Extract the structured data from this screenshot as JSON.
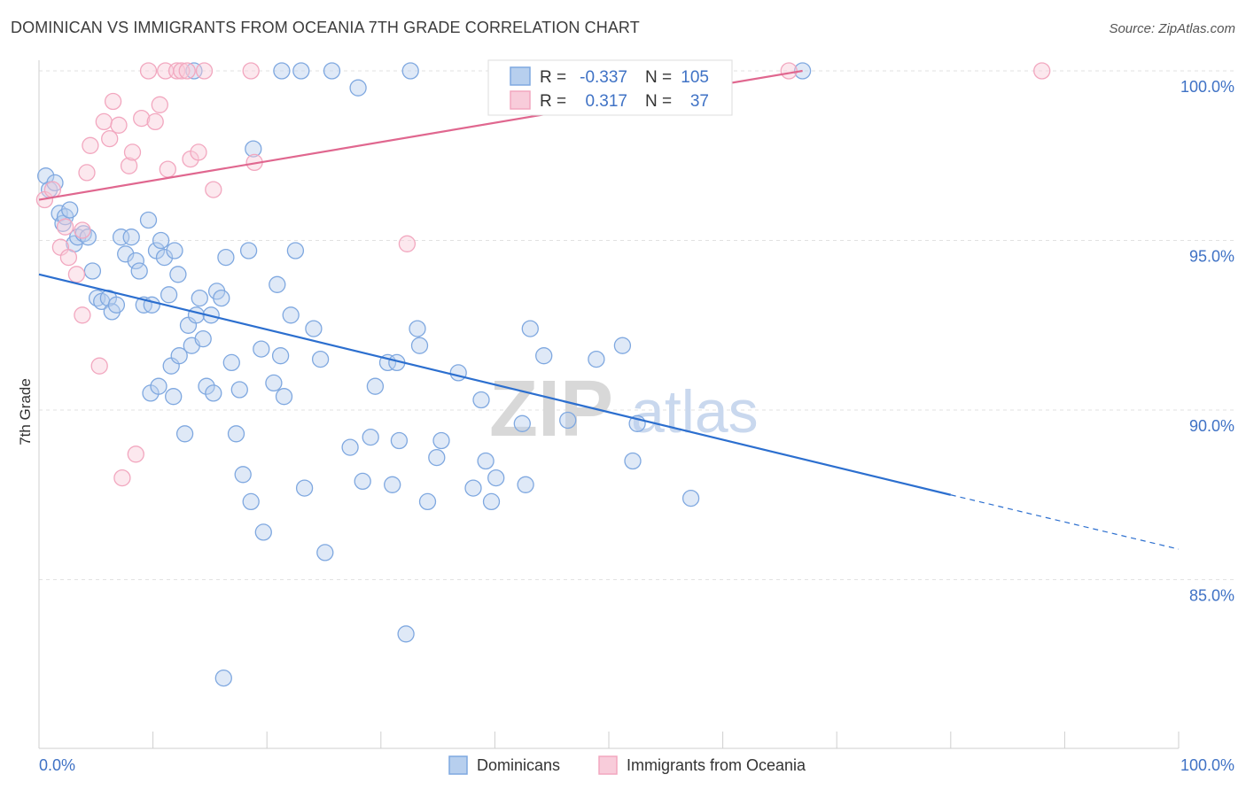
{
  "title": "DOMINICAN VS IMMIGRANTS FROM OCEANIA 7TH GRADE CORRELATION CHART",
  "source": "Source: ZipAtlas.com",
  "watermark": {
    "zip": "ZIP",
    "atlas": "atlas"
  },
  "colors": {
    "blue": "#7fa8e0",
    "blue_line": "#2c6fcf",
    "pink": "#f2a7bf",
    "pink_line": "#e0678f",
    "grid": "#e2e2e2",
    "tick_text": "#3f72c5"
  },
  "legend": {
    "rows": [
      {
        "r_label": "R =",
        "r_value": "-0.337",
        "n_label": "N =",
        "n_value": "105",
        "series": "Dominicans"
      },
      {
        "r_label": "R =",
        "r_value": "0.317",
        "n_label": "N =",
        "n_value": "37",
        "series": "Immigrants from Oceania"
      }
    ]
  },
  "chart_data": {
    "type": "scatter",
    "title": "DOMINICAN VS IMMIGRANTS FROM OCEANIA 7TH GRADE CORRELATION CHART",
    "xlabel": "",
    "ylabel": "7th Grade",
    "xlim": [
      0,
      100
    ],
    "ylim": [
      80.5,
      100.5
    ],
    "x_tick_labels": [
      "0.0%",
      "100.0%"
    ],
    "y_ticks": [
      85,
      90,
      95,
      100
    ],
    "y_tick_labels": [
      "85.0%",
      "90.0%",
      "95.0%",
      "100.0%"
    ],
    "grid": true,
    "series": [
      {
        "name": "Dominicans",
        "color": "#7fa8e0",
        "r": -0.337,
        "n": 105,
        "trend": {
          "x0": 0,
          "y0": 94.0,
          "x1": 80,
          "y1": 87.5,
          "dash_to_x": 100,
          "dash_to_y": 85.9
        },
        "points": [
          [
            0.6,
            96.9
          ],
          [
            0.9,
            96.5
          ],
          [
            1.4,
            96.7
          ],
          [
            1.8,
            95.8
          ],
          [
            2.1,
            95.5
          ],
          [
            2.3,
            95.7
          ],
          [
            2.7,
            95.9
          ],
          [
            3.1,
            94.9
          ],
          [
            3.4,
            95.1
          ],
          [
            3.9,
            95.2
          ],
          [
            4.3,
            95.1
          ],
          [
            4.7,
            94.1
          ],
          [
            5.1,
            93.3
          ],
          [
            5.5,
            93.2
          ],
          [
            6.1,
            93.3
          ],
          [
            6.4,
            92.9
          ],
          [
            6.8,
            93.1
          ],
          [
            7.2,
            95.1
          ],
          [
            7.6,
            94.6
          ],
          [
            8.1,
            95.1
          ],
          [
            8.5,
            94.4
          ],
          [
            8.8,
            94.1
          ],
          [
            9.2,
            93.1
          ],
          [
            9.6,
            95.6
          ],
          [
            9.9,
            93.1
          ],
          [
            10.3,
            94.7
          ],
          [
            10.7,
            95.0
          ],
          [
            11.0,
            94.5
          ],
          [
            11.4,
            93.4
          ],
          [
            11.9,
            94.7
          ],
          [
            12.2,
            94.0
          ],
          [
            9.8,
            90.5
          ],
          [
            10.5,
            90.7
          ],
          [
            11.6,
            91.3
          ],
          [
            11.8,
            90.4
          ],
          [
            12.3,
            91.6
          ],
          [
            12.8,
            89.3
          ],
          [
            13.1,
            92.5
          ],
          [
            13.4,
            91.9
          ],
          [
            13.8,
            92.8
          ],
          [
            14.1,
            93.3
          ],
          [
            14.4,
            92.1
          ],
          [
            14.7,
            90.7
          ],
          [
            15.1,
            92.8
          ],
          [
            15.3,
            90.5
          ],
          [
            15.6,
            93.5
          ],
          [
            16.0,
            93.3
          ],
          [
            16.4,
            94.5
          ],
          [
            16.9,
            91.4
          ],
          [
            17.3,
            89.3
          ],
          [
            17.6,
            90.6
          ],
          [
            17.9,
            88.1
          ],
          [
            18.4,
            94.7
          ],
          [
            18.8,
            97.7
          ],
          [
            18.6,
            87.3
          ],
          [
            19.5,
            91.8
          ],
          [
            19.7,
            86.4
          ],
          [
            20.6,
            90.8
          ],
          [
            20.9,
            93.7
          ],
          [
            21.2,
            91.6
          ],
          [
            21.5,
            90.4
          ],
          [
            22.1,
            92.8
          ],
          [
            22.5,
            94.7
          ],
          [
            23.3,
            87.7
          ],
          [
            24.1,
            92.4
          ],
          [
            24.7,
            91.5
          ],
          [
            25.1,
            85.8
          ],
          [
            25.7,
            100.0
          ],
          [
            27.3,
            88.9
          ],
          [
            28.0,
            99.5
          ],
          [
            28.4,
            87.9
          ],
          [
            29.1,
            89.2
          ],
          [
            29.5,
            90.7
          ],
          [
            30.6,
            91.4
          ],
          [
            31.0,
            87.8
          ],
          [
            31.4,
            91.4
          ],
          [
            31.6,
            89.1
          ],
          [
            32.2,
            83.4
          ],
          [
            32.6,
            100.0
          ],
          [
            33.2,
            92.4
          ],
          [
            33.4,
            91.9
          ],
          [
            34.1,
            87.3
          ],
          [
            34.9,
            88.6
          ],
          [
            35.3,
            89.1
          ],
          [
            36.8,
            91.1
          ],
          [
            38.1,
            87.7
          ],
          [
            38.8,
            90.3
          ],
          [
            39.2,
            88.5
          ],
          [
            39.7,
            87.3
          ],
          [
            40.1,
            88.0
          ],
          [
            42.4,
            89.6
          ],
          [
            42.7,
            87.8
          ],
          [
            43.1,
            92.4
          ],
          [
            44.3,
            91.6
          ],
          [
            46.4,
            89.7
          ],
          [
            48.9,
            91.5
          ],
          [
            51.2,
            91.9
          ],
          [
            52.1,
            88.5
          ],
          [
            52.5,
            89.6
          ],
          [
            57.2,
            87.4
          ],
          [
            23.0,
            100.0
          ],
          [
            21.3,
            100.0
          ],
          [
            16.2,
            82.1
          ],
          [
            67.0,
            100.0
          ],
          [
            13.6,
            100.0
          ]
        ]
      },
      {
        "name": "Immigrants from Oceania",
        "color": "#f2a7bf",
        "r": 0.317,
        "n": 37,
        "trend": {
          "x0": 0,
          "y0": 96.2,
          "x1": 67,
          "y1": 100.0
        },
        "points": [
          [
            0.5,
            96.2
          ],
          [
            1.2,
            96.5
          ],
          [
            1.9,
            94.8
          ],
          [
            2.3,
            95.4
          ],
          [
            2.6,
            94.5
          ],
          [
            3.3,
            94.0
          ],
          [
            3.8,
            95.3
          ],
          [
            3.8,
            92.8
          ],
          [
            4.2,
            97.0
          ],
          [
            4.5,
            97.8
          ],
          [
            5.3,
            91.3
          ],
          [
            5.7,
            98.5
          ],
          [
            6.2,
            98.0
          ],
          [
            6.5,
            99.1
          ],
          [
            7.0,
            98.4
          ],
          [
            7.3,
            88.0
          ],
          [
            7.9,
            97.2
          ],
          [
            8.2,
            97.6
          ],
          [
            8.5,
            88.7
          ],
          [
            9.0,
            98.6
          ],
          [
            9.6,
            100.0
          ],
          [
            10.2,
            98.5
          ],
          [
            10.6,
            99.0
          ],
          [
            11.1,
            100.0
          ],
          [
            11.3,
            97.1
          ],
          [
            12.1,
            100.0
          ],
          [
            12.5,
            100.0
          ],
          [
            13.0,
            100.0
          ],
          [
            13.3,
            97.4
          ],
          [
            14.0,
            97.6
          ],
          [
            14.5,
            100.0
          ],
          [
            15.3,
            96.5
          ],
          [
            18.6,
            100.0
          ],
          [
            18.9,
            97.3
          ],
          [
            32.3,
            94.9
          ],
          [
            65.8,
            100.0
          ],
          [
            88.0,
            100.0
          ]
        ]
      }
    ]
  },
  "bottom_legend": [
    "Dominicans",
    "Immigrants from Oceania"
  ]
}
